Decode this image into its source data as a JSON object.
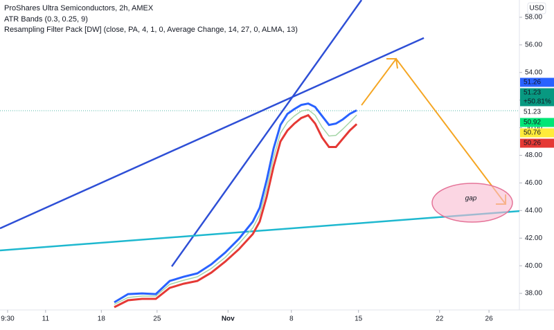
{
  "chart_data": {
    "type": "line",
    "title": "ProShares Ultra Semiconductors, 2h, AMEX",
    "indicators": [
      "ATR Bands (0.3, 0.25, 9)",
      "Resampling Filter Pack [DW] (close, PA, 4, 1, 0, Average Change, 14, 27, 0, ALMA, 13)"
    ],
    "currency": "USD",
    "xlim": [
      -3.6,
      37.4
    ],
    "ylim": [
      36.8,
      59.25
    ],
    "xticks": [
      {
        "value": -3,
        "label": "9:30"
      },
      {
        "value": 0,
        "label": "11"
      },
      {
        "value": 4.4,
        "label": "18"
      },
      {
        "value": 8.8,
        "label": "25"
      },
      {
        "value": 14.4,
        "label": "Nov"
      },
      {
        "value": 19.4,
        "label": "8"
      },
      {
        "value": 24.7,
        "label": "15"
      },
      {
        "value": 31.1,
        "label": "22"
      },
      {
        "value": 35,
        "label": "26"
      }
    ],
    "yticks": [
      {
        "value": 38,
        "label": "38.00"
      },
      {
        "value": 40,
        "label": "40.00"
      },
      {
        "value": 42,
        "label": "42.00"
      },
      {
        "value": 44,
        "label": "44.00"
      },
      {
        "value": 46,
        "label": "46.00"
      },
      {
        "value": 48,
        "label": "48.00"
      },
      {
        "value": 50,
        "label": "50.00"
      },
      {
        "value": 52,
        "label": "52.00"
      },
      {
        "value": 54,
        "label": "54.00"
      },
      {
        "value": 56,
        "label": "56.00"
      },
      {
        "value": 58,
        "label": "58.00"
      }
    ],
    "x": [
      5.42,
      6.51,
      7.61,
      8.7,
      9.8,
      10.89,
      11.98,
      13.08,
      14.17,
      15.26,
      16.36,
      16.9,
      17.45,
      18.0,
      18.54,
      19.09,
      19.64,
      20.18,
      20.73,
      21.28,
      21.82,
      22.37,
      22.92,
      23.46,
      24.01,
      24.56
    ],
    "series": [
      {
        "color": "#2962ff",
        "values": [
          37.35,
          37.95,
          38.0,
          37.95,
          38.9,
          39.2,
          39.45,
          40.1,
          40.95,
          41.95,
          43.2,
          44.2,
          46.2,
          48.5,
          50.2,
          51.0,
          51.35,
          51.65,
          51.75,
          51.5,
          50.85,
          50.2,
          50.3,
          50.6,
          51.0,
          51.26
        ]
      },
      {
        "color": "#a5d6a7",
        "values": [
          37.2,
          37.7,
          37.8,
          37.8,
          38.65,
          38.95,
          39.2,
          39.8,
          40.6,
          41.6,
          42.75,
          43.7,
          45.6,
          47.85,
          49.6,
          50.4,
          50.85,
          51.2,
          51.3,
          50.9,
          50.05,
          49.4,
          49.45,
          49.9,
          50.4,
          50.92
        ]
      },
      {
        "color": "#e53935",
        "values": [
          37.0,
          37.5,
          37.6,
          37.6,
          38.4,
          38.7,
          38.9,
          39.5,
          40.3,
          41.2,
          42.3,
          43.2,
          45.0,
          47.2,
          49.0,
          49.8,
          50.3,
          50.7,
          50.9,
          50.3,
          49.3,
          48.6,
          48.6,
          49.2,
          49.8,
          50.26
        ]
      }
    ],
    "trend_lines": [
      {
        "color": "#2e4fd6",
        "x": [
          -3.6,
          29.86
        ],
        "y": [
          42.71,
          56.5
        ]
      },
      {
        "color": "#2e4fd6",
        "x": [
          9.96,
          24.94
        ],
        "y": [
          39.95,
          59.25
        ]
      },
      {
        "color": "#1eb8cf",
        "x": [
          -3.6,
          37.4
        ],
        "y": [
          41.11,
          43.96
        ]
      }
    ],
    "arrow": {
      "color": "#f5a623",
      "x": [
        24.94,
        27.67,
        36.31
      ],
      "y": [
        51.63,
        54.99,
        44.47
      ]
    },
    "annotation": "gap",
    "last_price": 51.23,
    "price_tags": [
      {
        "value": 51.26,
        "color": "#2962ff"
      },
      {
        "value": 51.23,
        "color": "#089981",
        "change": 50.81,
        "change_label": "+50.81%"
      },
      {
        "value": 51.23,
        "color": "#ffffff"
      },
      {
        "value": 50.92,
        "color": "#00e676"
      },
      {
        "value": 50.76,
        "color": "#ffeb3b"
      },
      {
        "value": 50.26,
        "color": "#e53935"
      }
    ]
  }
}
